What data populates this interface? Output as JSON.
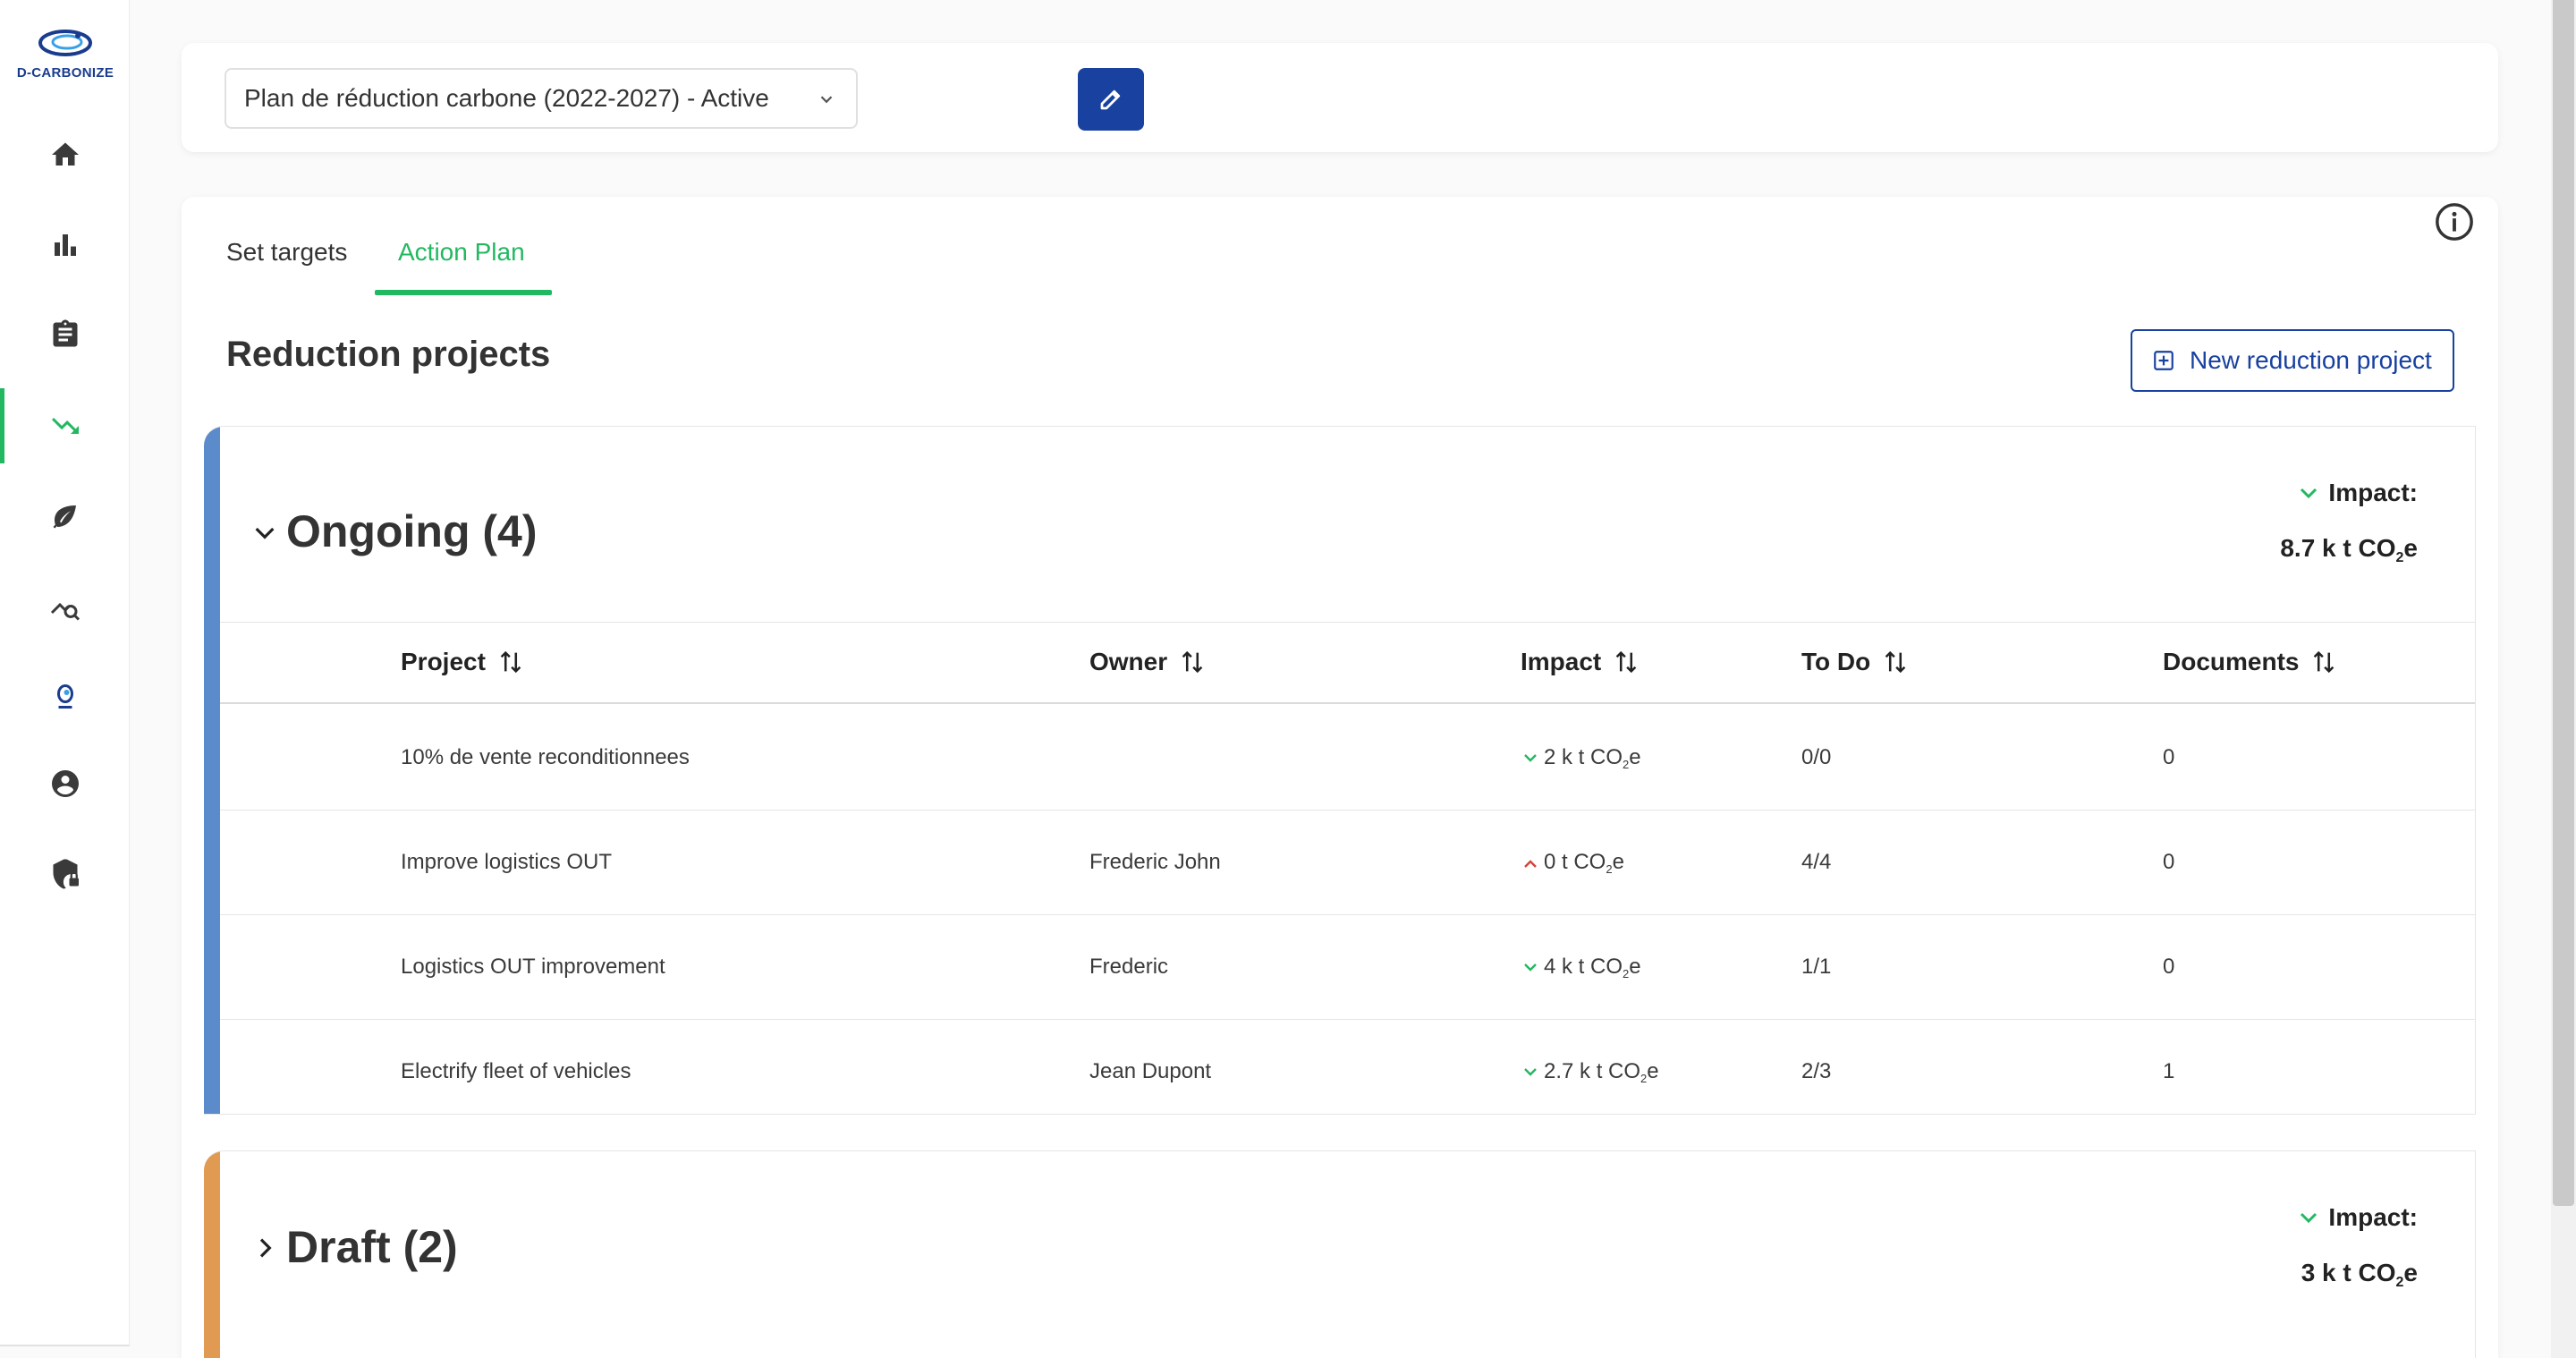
{
  "brand": {
    "name": "D-CARBONIZE",
    "color": "#1a3c8f"
  },
  "sidebar": {
    "items": [
      {
        "icon": "home-icon",
        "active": false
      },
      {
        "icon": "bar-chart-icon",
        "active": false
      },
      {
        "icon": "clipboard-icon",
        "active": false
      },
      {
        "icon": "trending-down-icon",
        "active": true
      },
      {
        "icon": "leaf-icon",
        "active": false
      },
      {
        "icon": "analytics-search-icon",
        "active": false
      },
      {
        "icon": "dcarbonize-logo-icon",
        "active": false
      },
      {
        "icon": "account-icon",
        "active": false
      },
      {
        "icon": "security-lock-icon",
        "active": false
      }
    ]
  },
  "top": {
    "plan_selected": "Plan de réduction carbone (2022-2027) - Active",
    "edit_icon": "pencil-icon"
  },
  "tabs": {
    "set_targets": "Set targets",
    "action_plan": "Action Plan",
    "active": "Action Plan"
  },
  "main": {
    "section_title": "Reduction projects",
    "new_project_label": "New reduction project"
  },
  "ongoing": {
    "title": "Ongoing (4)",
    "accent": "#5b8bcb",
    "impact_label": "Impact:",
    "impact_value": "8.7 k t CO",
    "impact_sub": "2",
    "impact_unit": "e",
    "columns": {
      "project": "Project",
      "owner": "Owner",
      "impact": "Impact",
      "todo": "To Do",
      "documents": "Documents"
    },
    "rows": [
      {
        "project": "10% de vente reconditionnees",
        "owner": "",
        "impact_trend": "down",
        "impact": "2 k t CO",
        "impact_sub": "2",
        "impact_unit": "e",
        "todo": "0/0",
        "documents": "0"
      },
      {
        "project": "Improve logistics OUT",
        "owner": "Frederic John",
        "impact_trend": "up",
        "impact": "0 t CO",
        "impact_sub": "2",
        "impact_unit": "e",
        "todo": "4/4",
        "documents": "0"
      },
      {
        "project": "Logistics OUT improvement",
        "owner": "Frederic",
        "impact_trend": "down",
        "impact": "4 k t CO",
        "impact_sub": "2",
        "impact_unit": "e",
        "todo": "1/1",
        "documents": "0"
      },
      {
        "project": "Electrify fleet of vehicles",
        "owner": "Jean Dupont",
        "impact_trend": "down",
        "impact": "2.7 k t CO",
        "impact_sub": "2",
        "impact_unit": "e",
        "todo": "2/3",
        "documents": "1"
      }
    ]
  },
  "draft": {
    "title": "Draft (2)",
    "accent": "#e09a52",
    "impact_label": "Impact:",
    "impact_value": "3 k t CO",
    "impact_sub": "2",
    "impact_unit": "e"
  },
  "colors": {
    "green": "#22b861",
    "primary": "#1841a0",
    "up_red": "#d0453a"
  }
}
